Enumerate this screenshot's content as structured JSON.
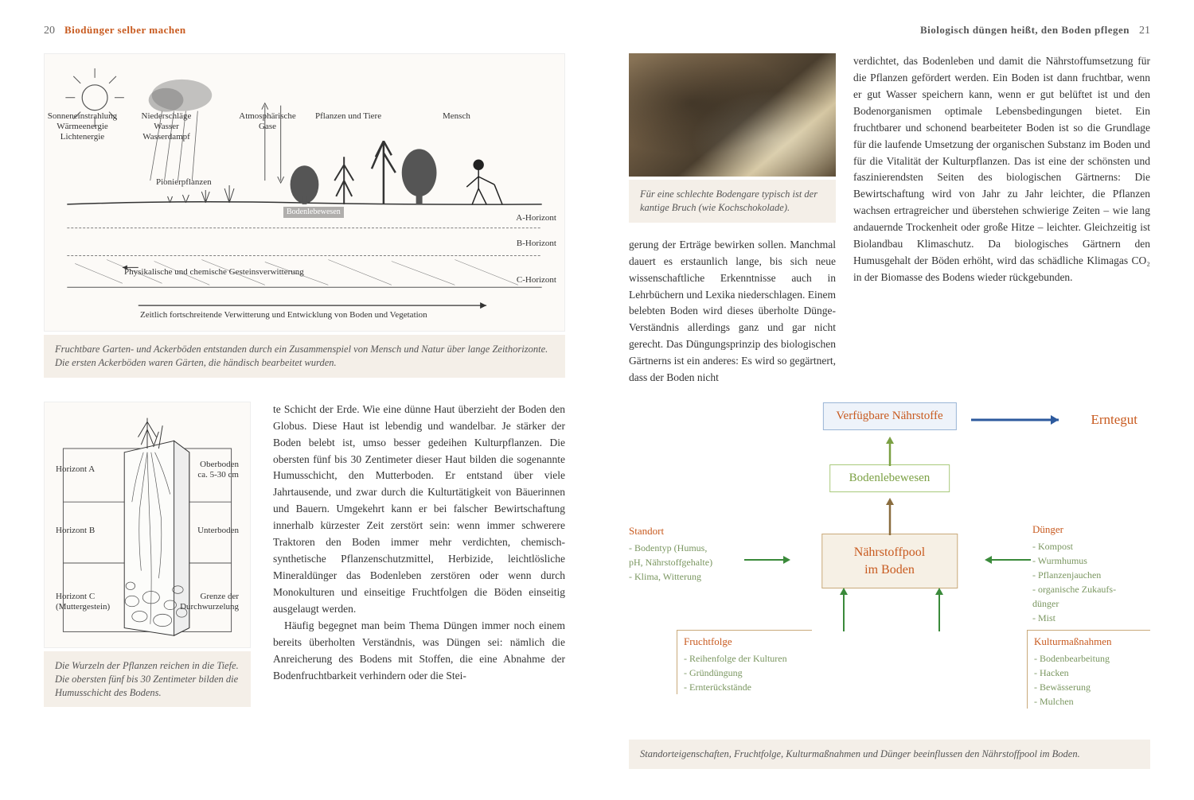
{
  "leftPage": {
    "num": "20",
    "title": "Biodünger selber machen"
  },
  "rightPage": {
    "num": "21",
    "title": "Biologisch düngen heißt, den Boden pflegen"
  },
  "soilDiagram": {
    "sun": "Sonneneinstrahlung\nWärmeenergie\nLichtenergie",
    "rain": "Niederschläge\nWasser\nWasserdampf",
    "gases": "Atmosphärische\nGase",
    "plants": "Pflanzen und Tiere",
    "human": "Mensch",
    "pioneer": "Pionierpflanzen",
    "bodenlebewesen": "Bodenlebewesen",
    "horizonA": "A-Horizont",
    "horizonB": "B-Horizont",
    "horizonC": "C-Horizont",
    "weathering": "Physikalische und chemische Gesteinsverwitterung",
    "timeline": "Zeitlich fortschreitende Verwitterung und Entwicklung von Boden und Vegetation",
    "caption": "Fruchtbare Garten- und Ackerböden entstanden durch ein Zusammenspiel von Mensch und Natur über lange Zeithorizonte. Die ersten Ackerböden waren Gärten, die händisch bearbeitet wurden."
  },
  "profileDiagram": {
    "horizonA": "Horizont A",
    "horizonB": "Horizont B",
    "horizonC": "Horizont C\n(Muttergestein)",
    "oberboden": "Oberboden\nca. 5-30 cm",
    "unterboden": "Unterboden",
    "grenze": "Grenze der\nDurchwurzelung",
    "caption": "Die Wurzeln der Pflanzen reichen in die Tiefe. Die obersten fünf bis 30 Zentimeter bilden die Humusschicht des Bodens."
  },
  "leftBody": "te Schicht der Erde. Wie eine dünne Haut überzieht der Boden den Globus. Diese Haut ist lebendig und wandelbar. Je stärker der Boden belebt ist, umso besser gedeihen Kulturpflanzen. Die obersten fünf bis 30 Zentimeter dieser Haut bilden die sogenannte Humusschicht, den Mutterboden. Er entstand über viele Jahrtausende, und zwar durch die Kulturtätigkeit von Bäuerinnen und Bauern. Umgekehrt kann er bei falscher Bewirtschaftung innerhalb kürzester Zeit zerstört sein: wenn immer schwerere Traktoren den Boden immer mehr verdichten, chemisch-synthetische Pflanzenschutzmittel, Herbizide, leichtlösliche Mineraldünger das Bodenleben zerstören oder wenn durch Monokulturen und einseitige Fruchtfolgen die Böden einseitig ausgelaugt werden.",
  "leftBody2": "Häufig begegnet man beim Thema Düngen immer noch einem bereits überholten Verständnis, was Düngen sei: nämlich die Anreicherung des Bodens mit Stoffen, die eine Abnahme der Bodenfruchtbarkeit verhindern oder die Stei-",
  "photoCaption": "Für eine schlechte Bodengare typisch ist der kantige Bruch (wie Kochschokolade).",
  "rightBodyL": "gerung der Erträge bewirken sollen. Manchmal dauert es erstaunlich lange, bis sich neue wissenschaftliche Erkenntnisse auch in Lehrbüchern und Lexika niederschlagen. Einem belebten Boden wird dieses überholte Dünge-Verständnis allerdings ganz und gar nicht gerecht. Das Düngungsprinzip des biologischen Gärtnerns ist ein anderes: Es wird so gegärtnert, dass der Boden nicht",
  "rightBodyR": "verdichtet, das Bodenleben und damit die Nährstoffumsetzung für die Pflanzen gefördert werden. Ein Boden ist dann fruchtbar, wenn er gut Wasser speichern kann, wenn er gut belüftet ist und den Bodenorganismen optimale Lebensbedingungen bietet. Ein fruchtbarer und schonend bearbeiteter Boden ist so die Grundlage für die laufende Umsetzung der organischen Substanz im Boden und für die Vitalität der Kulturpflanzen. Das ist eine der schönsten und faszinierendsten Seiten des biologischen Gärtnerns: Die Bewirtschaftung wird von Jahr zu Jahr leichter, die Pflanzen wachsen ertragreicher und überstehen schwierige Zeiten – wie lang andauernde Trockenheit oder große Hitze – leichter. Gleichzeitig ist Biolandbau Klimaschutz. Da biologisches Gärtnern den Humusgehalt der Böden erhöht, wird das schädliche Klimagas CO₂ in der Biomasse des Bodens wieder rückgebunden.",
  "flowchart": {
    "nutrients": "Verfügbare Nährstoffe",
    "erntegut": "Erntegut",
    "lebewesen": "Bodenlebewesen",
    "pool": "Nährstoffpool\nim Boden",
    "standort": {
      "head": "Standort",
      "items": [
        "- Bodentyp (Humus,",
        "  pH, Nährstoffgehalte)",
        "- Klima, Witterung"
      ]
    },
    "dunger": {
      "head": "Dünger",
      "items": [
        "- Kompost",
        "- Wurmhumus",
        "- Pflanzenjauchen",
        "- organische Zukaufs-",
        "  dünger",
        "- Mist"
      ]
    },
    "frucht": {
      "head": "Fruchtfolge",
      "items": [
        "- Reihenfolge der Kulturen",
        "- Gründüngung",
        "- Ernterückstände"
      ]
    },
    "kultur": {
      "head": "Kulturmaßnahmen",
      "items": [
        "- Bodenbearbeitung",
        "- Hacken",
        "- Bewässerung",
        "- Mulchen"
      ]
    },
    "caption": "Standorteigenschaften, Fruchtfolge, Kulturmaßnahmen und Dünger beeinflussen den Nährstoffpool im Boden.",
    "colors": {
      "orange": "#c85a1f",
      "green": "#7ba043",
      "blue": "#2d5a9e",
      "brown": "#8a6d3f"
    }
  }
}
